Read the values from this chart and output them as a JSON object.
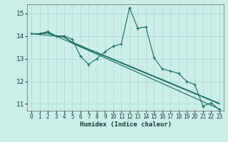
{
  "xlabel": "Humidex (Indice chaleur)",
  "background_color": "#cceee8",
  "grid_color": "#aadddd",
  "line_color": "#1a6b5a",
  "xlim": [
    -0.5,
    23.5
  ],
  "ylim": [
    10.7,
    15.4
  ],
  "xticks": [
    0,
    1,
    2,
    3,
    4,
    5,
    6,
    7,
    8,
    9,
    10,
    11,
    12,
    13,
    14,
    15,
    16,
    17,
    18,
    19,
    20,
    21,
    22,
    23
  ],
  "yticks": [
    11,
    12,
    13,
    14,
    15
  ],
  "line1_x": [
    0,
    1,
    2,
    3,
    4,
    5,
    6,
    7,
    8,
    9,
    10,
    11,
    12,
    13,
    14,
    15,
    16,
    17,
    18,
    19,
    20,
    21,
    22,
    23
  ],
  "line1_y": [
    14.1,
    14.1,
    14.2,
    14.0,
    14.0,
    13.85,
    13.1,
    12.75,
    13.0,
    13.3,
    13.55,
    13.65,
    15.25,
    14.35,
    14.4,
    13.05,
    12.55,
    12.45,
    12.35,
    12.0,
    11.85,
    10.9,
    11.05,
    10.75
  ],
  "line2_x": [
    0,
    1,
    2,
    3,
    4,
    5,
    6,
    7,
    8,
    9,
    10,
    11,
    12,
    13,
    14,
    15,
    16,
    17,
    18,
    19,
    20,
    21,
    22,
    23
  ],
  "line2_y": [
    14.1,
    14.1,
    14.15,
    14.0,
    13.95,
    13.7,
    13.55,
    13.4,
    13.25,
    13.1,
    12.95,
    12.8,
    12.65,
    12.5,
    12.35,
    12.2,
    12.05,
    11.9,
    11.75,
    11.6,
    11.45,
    11.3,
    11.15,
    11.0
  ],
  "line3_x": [
    0,
    1,
    2,
    3,
    4,
    5,
    6,
    7,
    8,
    9,
    10,
    11,
    12,
    13,
    14,
    15,
    16,
    17,
    18,
    19,
    20,
    21,
    22,
    23
  ],
  "line3_y": [
    14.1,
    14.1,
    14.12,
    14.0,
    13.97,
    13.72,
    13.58,
    13.42,
    13.28,
    13.13,
    12.98,
    12.83,
    12.68,
    12.53,
    12.38,
    12.23,
    12.08,
    11.93,
    11.78,
    11.63,
    11.48,
    11.33,
    11.18,
    11.03
  ],
  "line4_x": [
    0,
    3,
    23
  ],
  "line4_y": [
    14.1,
    14.0,
    10.78
  ]
}
